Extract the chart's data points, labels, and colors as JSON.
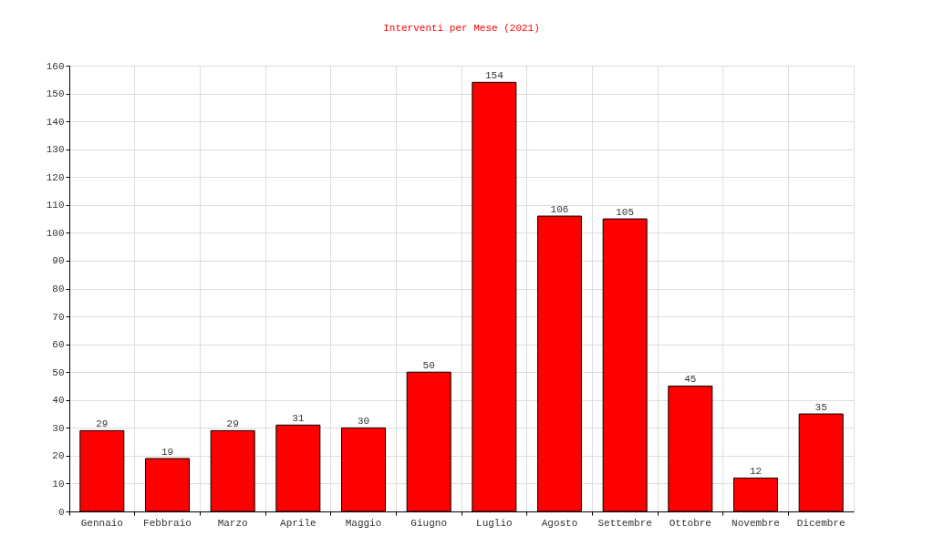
{
  "chart_data": {
    "type": "bar",
    "title": "Interventi per Mese (2021)",
    "categories": [
      "Gennaio",
      "Febbraio",
      "Marzo",
      "Aprile",
      "Maggio",
      "Giugno",
      "Luglio",
      "Agosto",
      "Settembre",
      "Ottobre",
      "Novembre",
      "Dicembre"
    ],
    "values": [
      29,
      19,
      29,
      31,
      30,
      50,
      154,
      106,
      105,
      45,
      12,
      35
    ],
    "color": "#ff0000",
    "ylim": [
      0,
      160
    ],
    "yticks": [
      0,
      10,
      20,
      30,
      40,
      50,
      60,
      70,
      80,
      90,
      100,
      110,
      120,
      130,
      140,
      150,
      160
    ],
    "grid": true,
    "data_labels": true
  }
}
